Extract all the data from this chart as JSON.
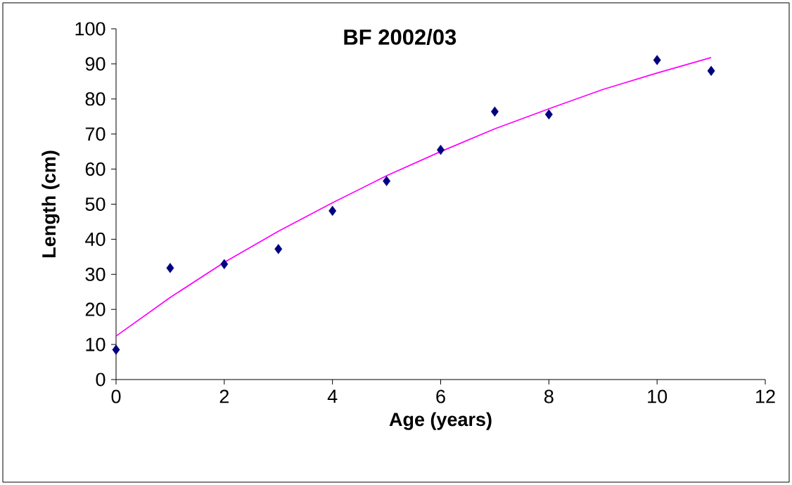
{
  "chart_data": {
    "type": "scatter",
    "title": "BF 2002/03",
    "xlabel": "Age (years)",
    "ylabel": "Length (cm)",
    "xlim": [
      0,
      12
    ],
    "xticks": [
      0,
      2,
      4,
      6,
      8,
      10,
      12
    ],
    "ylim": [
      0,
      100
    ],
    "yticks": [
      0,
      10,
      20,
      30,
      40,
      50,
      60,
      70,
      80,
      90,
      100
    ],
    "x": [
      0,
      1,
      2,
      3,
      4,
      5,
      6,
      7,
      8,
      10,
      11
    ],
    "series": [
      {
        "color": "#000080",
        "marker": "diamond",
        "values": [
          8.5,
          31.8,
          32.9,
          37.2,
          48.1,
          56.6,
          65.5,
          76.4,
          75.6,
          91.1,
          88.0
        ]
      },
      {
        "type": "line",
        "color": "#ff00ff",
        "marker": "none",
        "line_style": "solid",
        "x": [
          0,
          1,
          2,
          3,
          4,
          5,
          6,
          7,
          8,
          9,
          10,
          11
        ],
        "values": [
          12.4,
          23.4,
          33.4,
          42.3,
          50.4,
          58.1,
          65.0,
          71.5,
          77.2,
          82.7,
          87.4,
          91.8
        ]
      }
    ]
  }
}
